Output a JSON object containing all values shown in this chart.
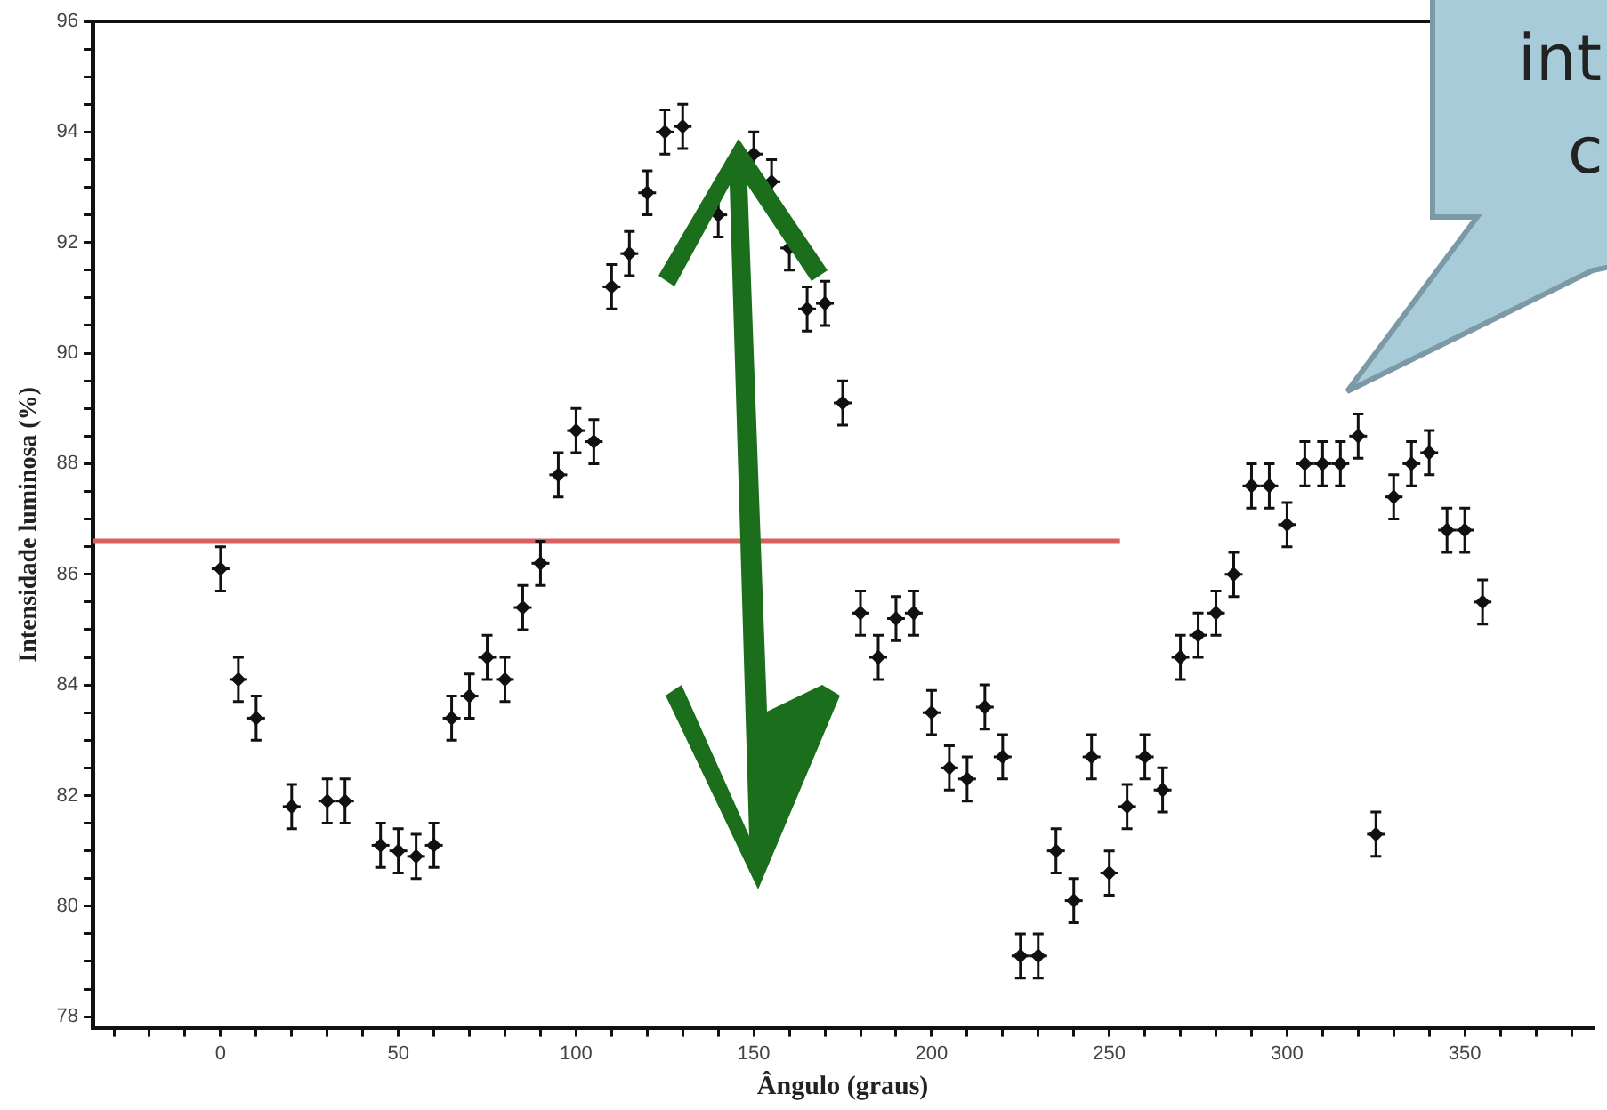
{
  "chart_data": {
    "type": "scatter",
    "xlabel": "Ângulo (graus)",
    "ylabel": "Intensidade luminosa (%)",
    "annotations": [
      "int",
      "c"
    ],
    "xlim": [
      -36,
      386
    ],
    "ylim": [
      77.8,
      96
    ],
    "xticks": [
      {
        "value": -30,
        "label": null
      },
      {
        "value": -20,
        "label": null
      },
      {
        "value": -10,
        "label": null
      },
      0,
      {
        "value": 10,
        "label": null
      },
      {
        "value": 20,
        "label": null
      },
      {
        "value": 30,
        "label": null
      },
      {
        "value": 40,
        "label": null
      },
      50,
      {
        "value": 60,
        "label": null
      },
      {
        "value": 70,
        "label": null
      },
      {
        "value": 80,
        "label": null
      },
      {
        "value": 90,
        "label": null
      },
      100,
      {
        "value": 110,
        "label": null
      },
      {
        "value": 120,
        "label": null
      },
      {
        "value": 130,
        "label": null
      },
      {
        "value": 140,
        "label": null
      },
      150,
      {
        "value": 160,
        "label": null
      },
      {
        "value": 170,
        "label": null
      },
      {
        "value": 180,
        "label": null
      },
      {
        "value": 190,
        "label": null
      },
      200,
      {
        "value": 210,
        "label": null
      },
      {
        "value": 220,
        "label": null
      },
      {
        "value": 230,
        "label": null
      },
      {
        "value": 240,
        "label": null
      },
      250,
      {
        "value": 260,
        "label": null
      },
      {
        "value": 270,
        "label": null
      },
      {
        "value": 280,
        "label": null
      },
      {
        "value": 290,
        "label": null
      },
      300,
      {
        "value": 310,
        "label": null
      },
      {
        "value": 320,
        "label": null
      },
      {
        "value": 330,
        "label": null
      },
      {
        "value": 340,
        "label": null
      },
      350,
      {
        "value": 360,
        "label": null
      },
      {
        "value": 370,
        "label": null
      },
      {
        "value": 380,
        "label": null
      }
    ],
    "yticks": [
      78,
      {
        "value": 78.5,
        "label": null
      },
      {
        "value": 79,
        "label": null
      },
      {
        "value": 79.5,
        "label": null
      },
      80,
      {
        "value": 80.5,
        "label": null
      },
      {
        "value": 81,
        "label": null
      },
      {
        "value": 81.5,
        "label": null
      },
      82,
      {
        "value": 82.5,
        "label": null
      },
      {
        "value": 83,
        "label": null
      },
      {
        "value": 83.5,
        "label": null
      },
      84,
      {
        "value": 84.5,
        "label": null
      },
      {
        "value": 85,
        "label": null
      },
      {
        "value": 85.5,
        "label": null
      },
      86,
      {
        "value": 86.5,
        "label": null
      },
      {
        "value": 87,
        "label": null
      },
      {
        "value": 87.5,
        "label": null
      },
      88,
      {
        "value": 88.5,
        "label": null
      },
      {
        "value": 89,
        "label": null
      },
      {
        "value": 89.5,
        "label": null
      },
      90,
      {
        "value": 90.5,
        "label": null
      },
      {
        "value": 91,
        "label": null
      },
      {
        "value": 91.5,
        "label": null
      },
      92,
      {
        "value": 92.5,
        "label": null
      },
      {
        "value": 93,
        "label": null
      },
      {
        "value": 93.5,
        "label": null
      },
      94,
      {
        "value": 94.5,
        "label": null
      },
      {
        "value": 95,
        "label": null
      },
      {
        "value": 95.5,
        "label": null
      },
      96
    ],
    "grid": false,
    "legend": false,
    "marker": "diamond",
    "series": [
      {
        "type": "scatter",
        "color": "#111111",
        "x": [
          0,
          5,
          10,
          20,
          30,
          35,
          45,
          50,
          55,
          60,
          65,
          70,
          75,
          80,
          85,
          90,
          95,
          100,
          105,
          110,
          115,
          120,
          125,
          130,
          140,
          150,
          155,
          160,
          165,
          170,
          175,
          180,
          185,
          190,
          195,
          200,
          205,
          210,
          215,
          220,
          225,
          230,
          235,
          240,
          245,
          250,
          255,
          260,
          265,
          270,
          275,
          280,
          285,
          290,
          295,
          300,
          305,
          310,
          315,
          320,
          325,
          330,
          335,
          340,
          345,
          350,
          355
        ],
        "values": [
          86.1,
          84.1,
          83.4,
          81.8,
          81.9,
          81.9,
          81.1,
          81.0,
          80.9,
          81.1,
          83.4,
          83.8,
          84.5,
          84.1,
          85.4,
          86.2,
          87.8,
          88.6,
          88.4,
          91.2,
          91.8,
          92.9,
          94.0,
          94.1,
          92.5,
          93.6,
          93.1,
          91.9,
          90.8,
          90.9,
          89.1,
          85.3,
          84.5,
          85.2,
          85.3,
          83.5,
          82.5,
          82.3,
          83.6,
          82.7,
          79.1,
          79.1,
          81.0,
          80.1,
          82.7,
          80.6,
          81.8,
          82.7,
          82.1,
          84.5,
          84.9,
          85.3,
          86.0,
          87.6,
          87.6,
          86.9,
          88.0,
          88.0,
          88.0,
          88.5,
          81.3,
          87.4,
          88.0,
          88.2,
          86.8,
          86.8,
          85.5
        ],
        "errors": [
          0.4,
          0.4,
          0.4,
          0.4,
          0.4,
          0.4,
          0.4,
          0.4,
          0.4,
          0.4,
          0.4,
          0.4,
          0.4,
          0.4,
          0.4,
          0.4,
          0.4,
          0.4,
          0.4,
          0.4,
          0.4,
          0.4,
          0.4,
          0.4,
          0.4,
          0.4,
          0.4,
          0.4,
          0.4,
          0.4,
          0.4,
          0.4,
          0.4,
          0.4,
          0.4,
          0.4,
          0.4,
          0.4,
          0.4,
          0.4,
          0.4,
          0.4,
          0.4,
          0.4,
          0.4,
          0.4,
          0.4,
          0.4,
          0.4,
          0.4,
          0.4,
          0.4,
          0.4,
          0.4,
          0.4,
          0.4,
          0.4,
          0.4,
          0.4,
          0.4,
          0.4,
          0.4,
          0.4,
          0.4,
          0.4,
          0.4,
          0.4
        ],
        "xerrors": [
          2.5,
          2.5,
          2.5,
          2.5,
          2.5,
          2.5,
          2.5,
          2.5,
          2.5,
          2.5,
          2.5,
          2.5,
          2.5,
          2.5,
          2.5,
          2.5,
          2.5,
          2.5,
          2.5,
          2.5,
          2.5,
          2.5,
          2.5,
          2.5,
          2.5,
          2.5,
          2.5,
          2.5,
          2.5,
          2.5,
          2.5,
          2.5,
          2.5,
          2.5,
          2.5,
          2.5,
          2.5,
          2.5,
          2.5,
          2.5,
          2.5,
          2.5,
          2.5,
          2.5,
          2.5,
          2.5,
          2.5,
          2.5,
          2.5,
          2.5,
          2.5,
          2.5,
          2.5,
          2.5,
          2.5,
          2.5,
          2.5,
          2.5,
          2.5,
          2.5,
          2.5,
          2.5,
          2.5,
          2.5,
          2.5,
          2.5,
          2.5
        ]
      },
      {
        "type": "line",
        "color": "#d9605f",
        "x": [
          -36,
          253
        ],
        "values": [
          86.6,
          86.6
        ],
        "line_style": "solid",
        "marker": "none"
      }
    ]
  }
}
